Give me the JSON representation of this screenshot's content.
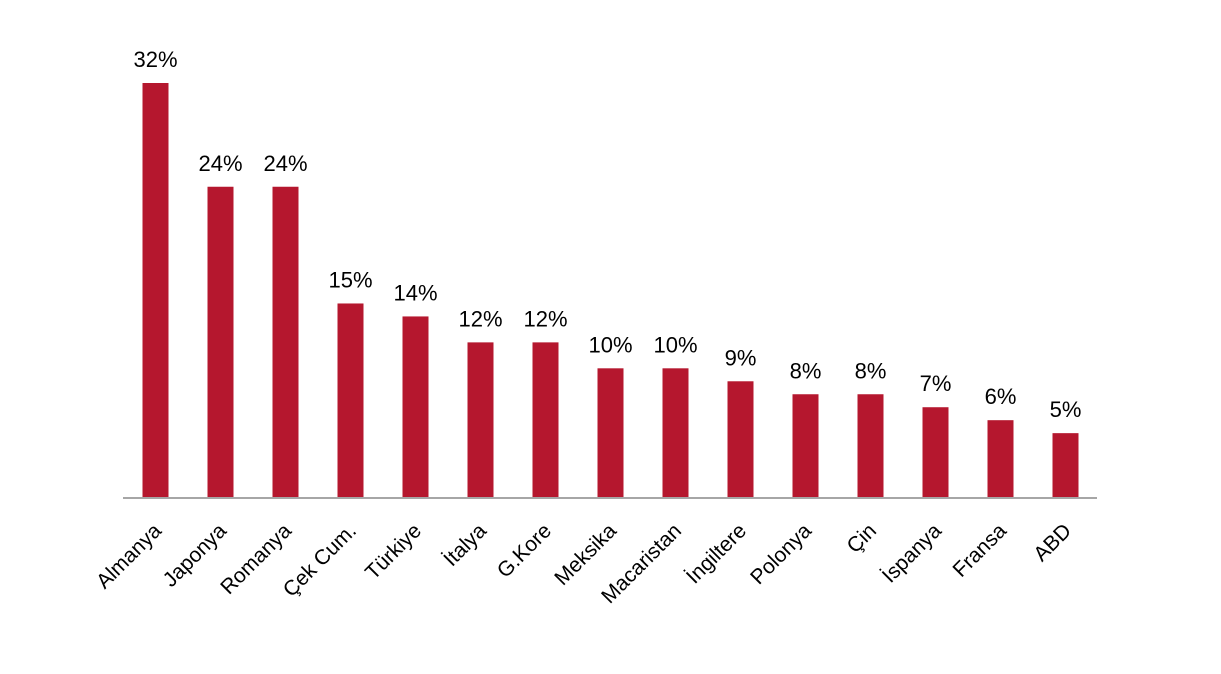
{
  "chart_data": {
    "type": "bar",
    "categories": [
      "Almanya",
      "Japonya",
      "Romanya",
      "Çek Cum.",
      "Türkiye",
      "İtalya",
      "G.Kore",
      "Meksika",
      "Macaristan",
      "İngiltere",
      "Polonya",
      "Çin",
      "İspanya",
      "Fransa",
      "ABD"
    ],
    "values": [
      32,
      24,
      24,
      15,
      14,
      12,
      12,
      10,
      10,
      9,
      8,
      8,
      7,
      6,
      5
    ],
    "value_labels": [
      "32%",
      "24%",
      "24%",
      "15%",
      "14%",
      "12%",
      "12%",
      "10%",
      "10%",
      "9%",
      "8%",
      "8%",
      "7%",
      "6%",
      "5%"
    ],
    "title": "",
    "xlabel": "",
    "ylabel": "",
    "ylim": [
      0,
      32
    ],
    "grid": false,
    "legend": "none",
    "colors": {
      "bar": "#b5172e",
      "axis": "#a6a6a6",
      "text": "#000000"
    }
  }
}
